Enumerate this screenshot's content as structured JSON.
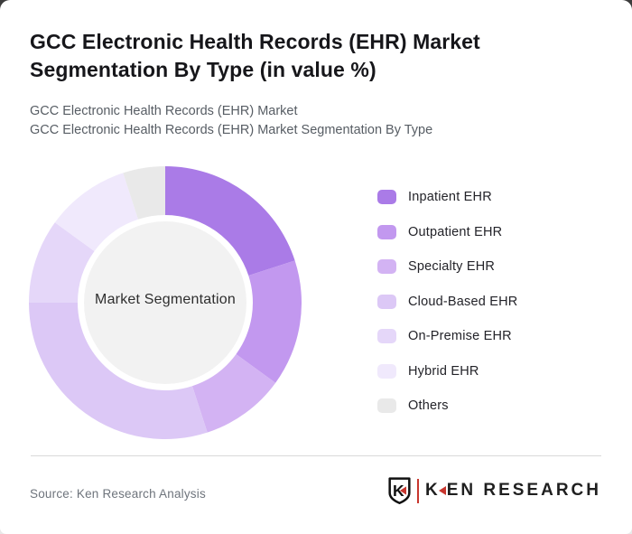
{
  "header": {
    "title": "GCC Electronic Health Records (EHR) Market Segmentation By Type (in value %)",
    "subtitle_line1": "GCC Electronic Health Records (EHR) Market",
    "subtitle_line2": "GCC Electronic Health Records (EHR) Market Segmentation By Type"
  },
  "chart_data": {
    "type": "pie",
    "variant": "donut",
    "title": "GCC Electronic Health Records (EHR) Market Segmentation By Type (in value %)",
    "center_label": "Market Segmentation",
    "categories": [
      "Inpatient EHR",
      "Outpatient EHR",
      "Specialty EHR",
      "Cloud-Based EHR",
      "On-Premise EHR",
      "Hybrid EHR",
      "Others"
    ],
    "values": [
      20,
      15,
      10,
      30,
      10,
      10,
      5
    ],
    "unit": "%",
    "colors": [
      "#aa7be7",
      "#c298ef",
      "#d3b3f3",
      "#dcc8f6",
      "#e5d7f9",
      "#f0e9fc",
      "#e9e9e9"
    ],
    "start_angle_deg": 0,
    "direction": "clockwise",
    "legend_position": "right",
    "inner_circle_color": "#f2f2f2"
  },
  "footer": {
    "source": "Source: Ken Research Analysis",
    "logo": {
      "shield_letter": "K",
      "brand": "KEN RESEARCH"
    }
  },
  "colors": {
    "accent_red": "#c8362e",
    "center_circle": "#f2f2f2"
  }
}
